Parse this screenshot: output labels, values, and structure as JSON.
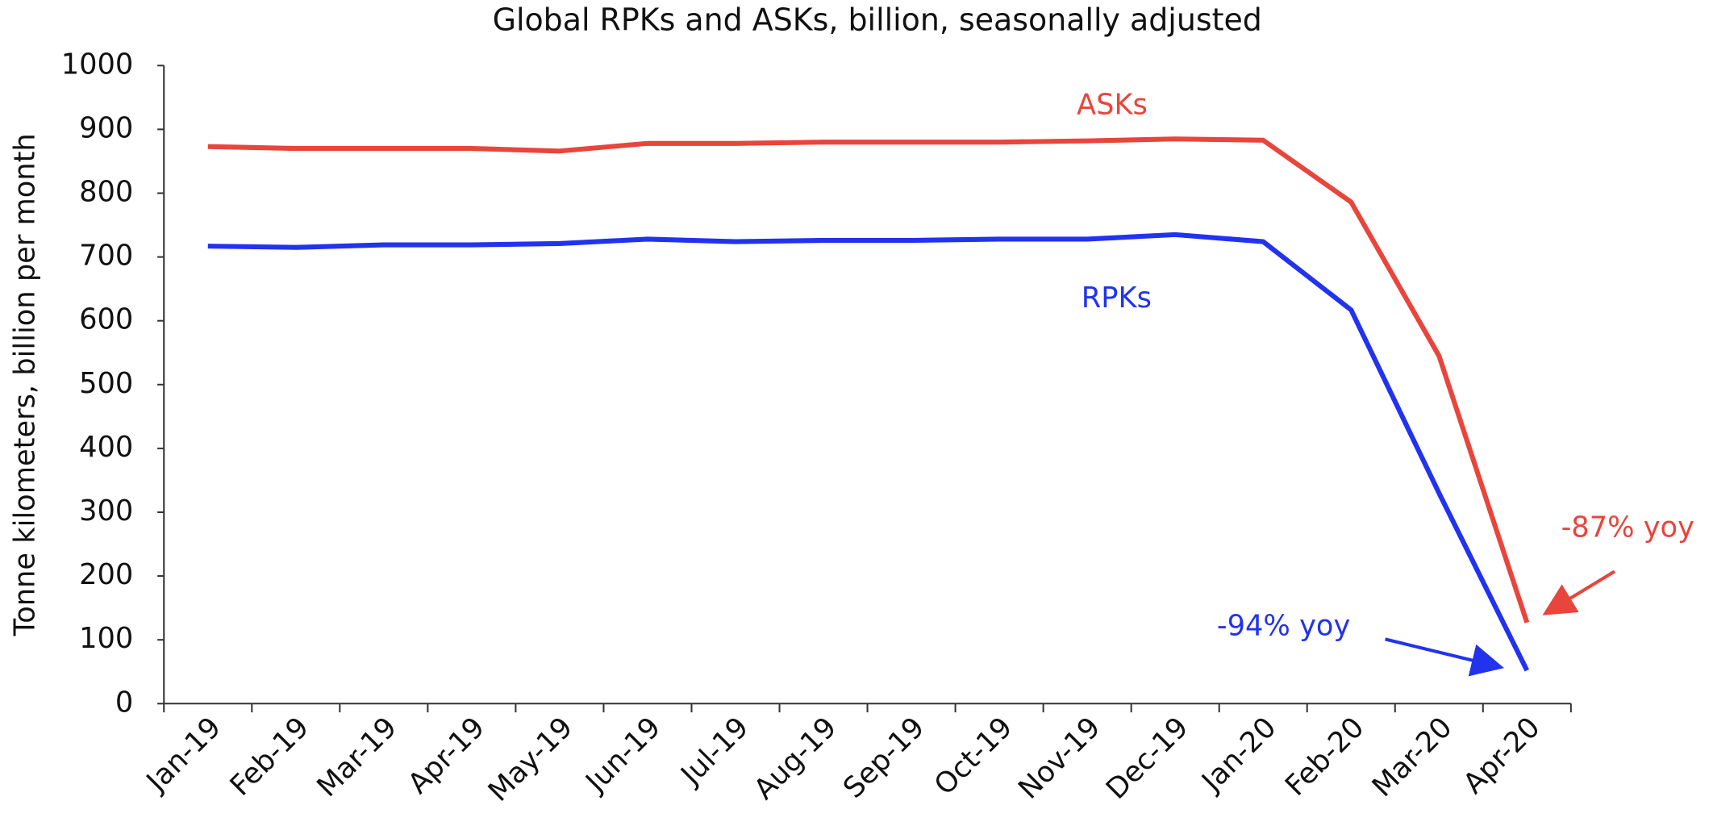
{
  "chart_data": {
    "type": "line",
    "title": "Global RPKs and ASKs, billion, seasonally adjusted",
    "y_label": "Tonne kilometers, billion per month",
    "categories": [
      "Jan-19",
      "Feb-19",
      "Mar-19",
      "Apr-19",
      "May-19",
      "Jun-19",
      "Jul-19",
      "Aug-19",
      "Sep-19",
      "Oct-19",
      "Nov-19",
      "Dec-19",
      "Jan-20",
      "Feb-20",
      "Mar-20",
      "Apr-20"
    ],
    "series": [
      {
        "name": "ASKs",
        "color": "#e8453c",
        "values": [
          873,
          870,
          870,
          870,
          866,
          878,
          878,
          880,
          880,
          880,
          882,
          885,
          883,
          786,
          545,
          127
        ]
      },
      {
        "name": "RPKs",
        "color": "#2233ee",
        "values": [
          717,
          715,
          719,
          719,
          721,
          728,
          724,
          726,
          726,
          728,
          728,
          735,
          724,
          617,
          330,
          52
        ]
      }
    ],
    "annotations": [
      {
        "text": "-87% yoy",
        "color": "#e8453c"
      },
      {
        "text": "-94% yoy",
        "color": "#2233ee"
      }
    ],
    "ylim": [
      0,
      1000
    ],
    "yticks": [
      0,
      100,
      200,
      300,
      400,
      500,
      600,
      700,
      800,
      900,
      1000
    ],
    "grid": false
  }
}
